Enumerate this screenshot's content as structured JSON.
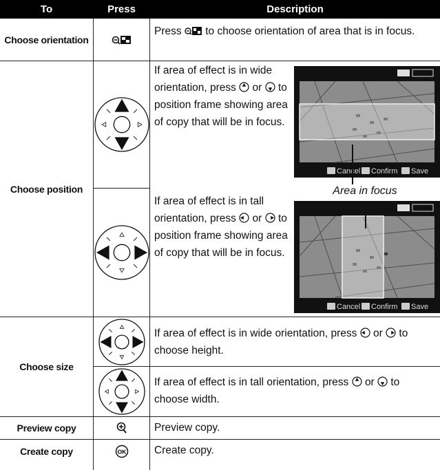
{
  "table": {
    "header": [
      "To",
      "Press",
      "Description"
    ],
    "rows": [
      {
        "to": "Choose orientation",
        "description": [
          "Press",
          "to choose orientation of area that is in focus."
        ]
      },
      {
        "to": "Choose position",
        "options": [
          {
            "description": [
              "If area of effect is in wide orientation, press",
              "or",
              "to position frame showing area of copy that will be in focus."
            ]
          },
          {
            "description": [
              "If area of effect is in tall orientation, press",
              "or",
              "to position frame showing area of copy that will be in focus."
            ]
          }
        ]
      },
      {
        "to": "Choose size",
        "options": [
          {
            "description": [
              "If area of effect is in wide orientation, press",
              "or",
              "to choose height."
            ]
          },
          {
            "description": [
              "If area of effect is in tall orientation, press",
              "or",
              "to choose width."
            ]
          }
        ]
      },
      {
        "to": "Preview copy",
        "description": [
          "Preview copy."
        ]
      },
      {
        "to": "Create copy",
        "description": [
          "Create copy."
        ]
      }
    ]
  },
  "screens": [
    {
      "buttons": [
        "Cancel",
        "Confirm",
        "Save"
      ]
    },
    {
      "buttons": [
        "Cancel",
        "Confirm",
        "Save"
      ]
    }
  ],
  "callout": "Area in focus"
}
